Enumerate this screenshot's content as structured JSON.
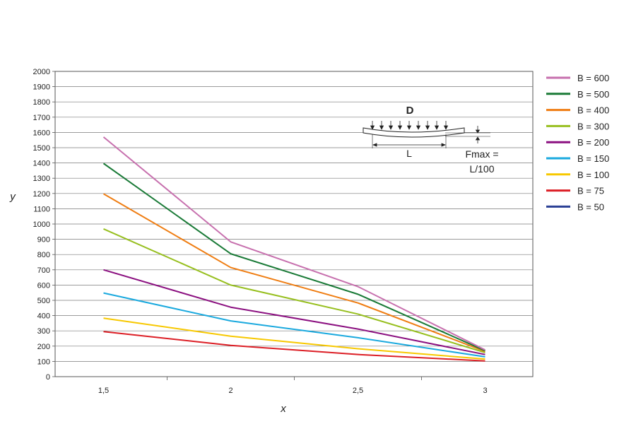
{
  "chart_data": {
    "type": "line",
    "xlabel": "x",
    "ylabel": "y",
    "x": [
      1.5,
      2,
      2.5,
      3
    ],
    "x_tick_labels": [
      "1,5",
      "2",
      "2,5",
      "3"
    ],
    "ylim": [
      0,
      2000
    ],
    "yticks": [
      0,
      100,
      200,
      300,
      400,
      500,
      600,
      700,
      800,
      900,
      1000,
      1100,
      1200,
      1300,
      1400,
      1500,
      1600,
      1700,
      1800,
      1900,
      2000
    ],
    "grid": true,
    "legend_position": "right",
    "series": [
      {
        "name": "B = 600",
        "color": "#c770ae",
        "values": [
          1570,
          883,
          590,
          175
        ]
      },
      {
        "name": "B = 500",
        "color": "#1a7a37",
        "values": [
          1397,
          805,
          540,
          170
        ]
      },
      {
        "name": "B = 400",
        "color": "#ef7d12",
        "values": [
          1198,
          715,
          483,
          165
        ]
      },
      {
        "name": "B = 300",
        "color": "#97bf1f",
        "values": [
          968,
          600,
          410,
          158
        ]
      },
      {
        "name": "B = 200",
        "color": "#8b1080",
        "values": [
          700,
          455,
          312,
          145
        ]
      },
      {
        "name": "B = 150",
        "color": "#1aa9de",
        "values": [
          548,
          365,
          255,
          130
        ]
      },
      {
        "name": "B = 100",
        "color": "#f7c800",
        "values": [
          383,
          265,
          183,
          115
        ]
      },
      {
        "name": "B = 75",
        "color": "#dc1f26",
        "values": [
          295,
          205,
          145,
          103
        ]
      },
      {
        "name": "B = 50",
        "color": "#2a3f94",
        "values": [
          null,
          null,
          null,
          null
        ]
      }
    ]
  },
  "diagram": {
    "title": "D",
    "span_label": "L",
    "deflection_label_line1": "Fmax =",
    "deflection_label_line2": "L/100"
  }
}
